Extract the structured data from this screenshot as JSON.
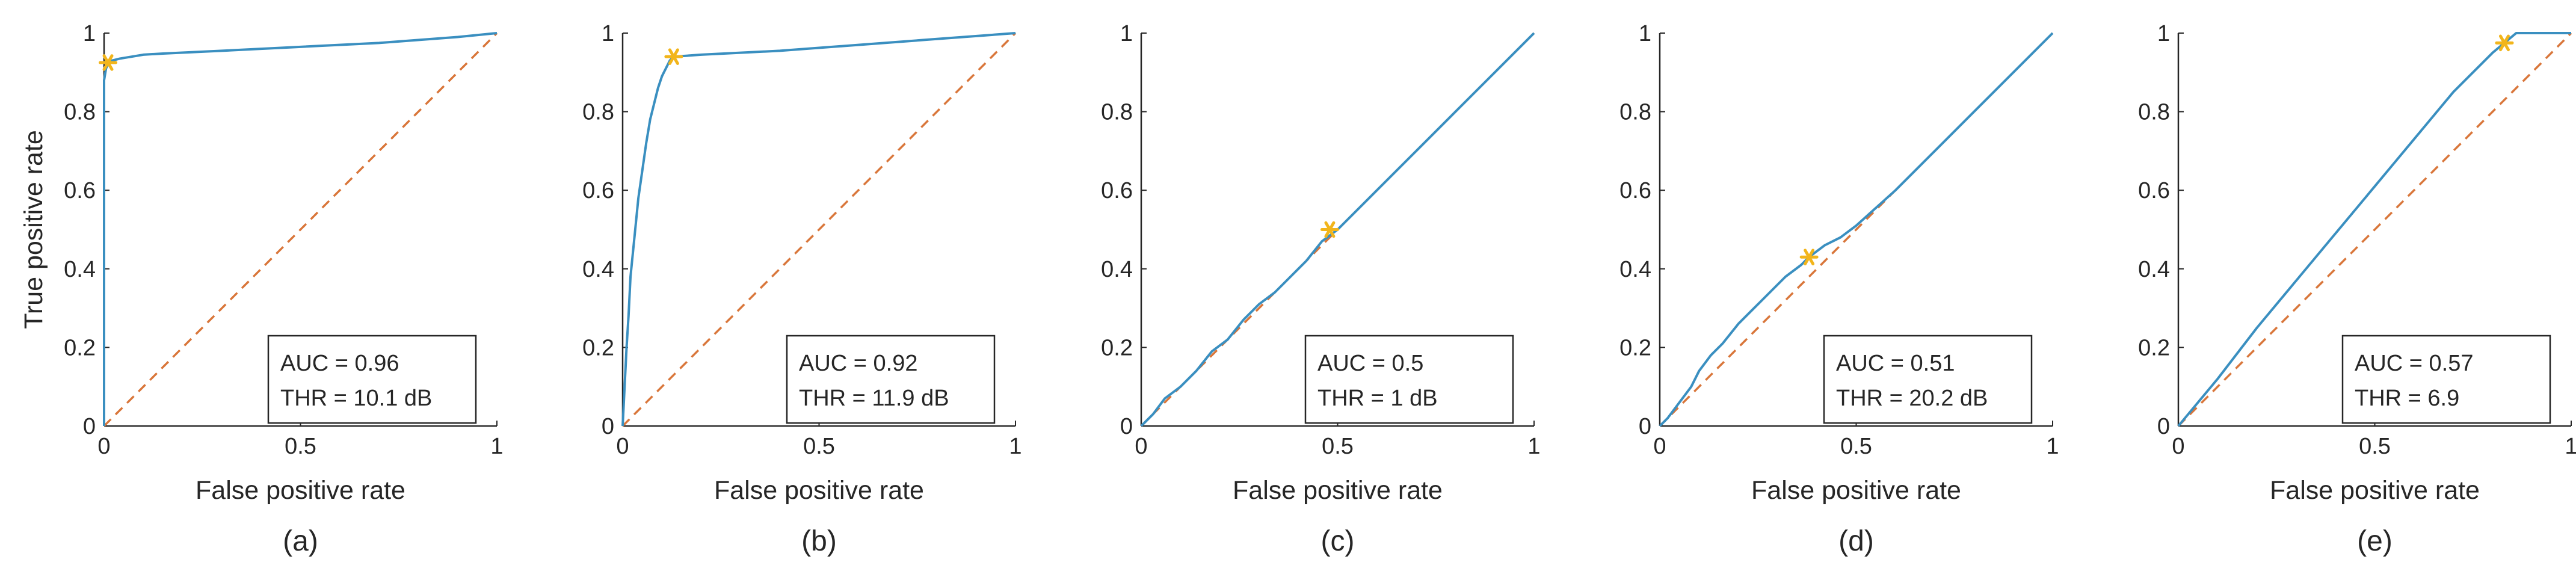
{
  "colors": {
    "roc_curve": "#3a8fc0",
    "chance_line": "#d9763a",
    "optimal_marker": "#f2b51b",
    "axes": "#262626"
  },
  "shared_axes": {
    "xlabel": "False positive rate",
    "ylabel": "True positive rate",
    "xticks": [
      "0",
      "0.5",
      "1"
    ],
    "yticks": [
      "0",
      "0.2",
      "0.4",
      "0.6",
      "0.8",
      "1"
    ]
  },
  "chart_data": [
    {
      "type": "line",
      "caption": "(a)",
      "xlabel": "False positive rate",
      "ylabel": "True positive rate",
      "xlim": [
        0,
        1
      ],
      "ylim": [
        0,
        1
      ],
      "grid": false,
      "annotation": {
        "auc": "AUC = 0.96",
        "thr": "THR = 10.1 dB",
        "placement": "bottom-right"
      },
      "series": [
        {
          "role": "roc",
          "x": [
            0,
            0,
            0.005,
            0.01,
            0.02,
            0.04,
            0.07,
            0.1,
            0.15,
            0.3,
            0.5,
            0.7,
            0.9,
            1.0
          ],
          "y": [
            0,
            0.88,
            0.91,
            0.92,
            0.93,
            0.935,
            0.94,
            0.945,
            0.948,
            0.955,
            0.965,
            0.975,
            0.99,
            1.0
          ]
        },
        {
          "role": "chance",
          "x": [
            0,
            1
          ],
          "y": [
            0,
            1
          ]
        }
      ],
      "optimal_point": {
        "x": 0.01,
        "y": 0.925
      }
    },
    {
      "type": "line",
      "caption": "(b)",
      "xlabel": "False positive rate",
      "ylabel": "",
      "xlim": [
        0,
        1
      ],
      "ylim": [
        0,
        1
      ],
      "grid": false,
      "annotation": {
        "auc": "AUC = 0.92",
        "thr": "THR = 11.9 dB",
        "placement": "bottom-right"
      },
      "series": [
        {
          "role": "roc",
          "x": [
            0,
            0.005,
            0.01,
            0.015,
            0.02,
            0.03,
            0.04,
            0.05,
            0.06,
            0.07,
            0.08,
            0.09,
            0.1,
            0.11,
            0.12,
            0.13,
            0.2,
            0.4,
            0.6,
            0.8,
            1.0
          ],
          "y": [
            0,
            0.1,
            0.2,
            0.28,
            0.38,
            0.48,
            0.58,
            0.65,
            0.72,
            0.78,
            0.82,
            0.86,
            0.89,
            0.91,
            0.93,
            0.94,
            0.945,
            0.955,
            0.97,
            0.985,
            1.0
          ]
        },
        {
          "role": "chance",
          "x": [
            0,
            1
          ],
          "y": [
            0,
            1
          ]
        }
      ],
      "optimal_point": {
        "x": 0.13,
        "y": 0.94
      }
    },
    {
      "type": "line",
      "caption": "(c)",
      "xlabel": "False positive rate",
      "ylabel": "",
      "xlim": [
        0,
        1
      ],
      "ylim": [
        0,
        1
      ],
      "grid": false,
      "annotation": {
        "auc": "AUC = 0.5",
        "thr": "THR = 1 dB",
        "placement": "bottom-right"
      },
      "series": [
        {
          "role": "roc",
          "x": [
            0,
            0.03,
            0.06,
            0.1,
            0.14,
            0.18,
            0.22,
            0.26,
            0.3,
            0.34,
            0.38,
            0.42,
            0.46,
            0.5,
            0.6,
            0.7,
            0.8,
            0.9,
            1.0
          ],
          "y": [
            0,
            0.03,
            0.07,
            0.1,
            0.14,
            0.19,
            0.22,
            0.27,
            0.31,
            0.34,
            0.38,
            0.42,
            0.47,
            0.5,
            0.6,
            0.7,
            0.8,
            0.9,
            1.0
          ]
        },
        {
          "role": "chance",
          "x": [
            0,
            1
          ],
          "y": [
            0,
            1
          ]
        }
      ],
      "optimal_point": {
        "x": 0.48,
        "y": 0.5
      }
    },
    {
      "type": "line",
      "caption": "(d)",
      "xlabel": "False positive rate",
      "ylabel": "",
      "xlim": [
        0,
        1
      ],
      "ylim": [
        0,
        1
      ],
      "grid": false,
      "annotation": {
        "auc": "AUC = 0.51",
        "thr": "THR = 20.2 dB",
        "placement": "bottom-right"
      },
      "series": [
        {
          "role": "roc",
          "x": [
            0,
            0.02,
            0.05,
            0.08,
            0.1,
            0.13,
            0.16,
            0.2,
            0.24,
            0.28,
            0.32,
            0.36,
            0.38,
            0.42,
            0.46,
            0.5,
            0.6,
            0.7,
            0.8,
            0.9,
            1.0
          ],
          "y": [
            0,
            0.02,
            0.06,
            0.1,
            0.14,
            0.18,
            0.21,
            0.26,
            0.3,
            0.34,
            0.38,
            0.41,
            0.43,
            0.46,
            0.48,
            0.51,
            0.6,
            0.7,
            0.8,
            0.9,
            1.0
          ]
        },
        {
          "role": "chance",
          "x": [
            0,
            1
          ],
          "y": [
            0,
            1
          ]
        }
      ],
      "optimal_point": {
        "x": 0.38,
        "y": 0.43
      }
    },
    {
      "type": "line",
      "caption": "(e)",
      "xlabel": "False positive rate",
      "ylabel": "",
      "xlim": [
        0,
        1
      ],
      "ylim": [
        0,
        1
      ],
      "grid": false,
      "annotation": {
        "auc": "AUC = 0.57",
        "thr": "THR = 6.9",
        "placement": "bottom-right"
      },
      "series": [
        {
          "role": "roc",
          "x": [
            0,
            0.1,
            0.2,
            0.3,
            0.4,
            0.45,
            0.5,
            0.55,
            0.6,
            0.65,
            0.7,
            0.75,
            0.8,
            0.83,
            0.86,
            0.9,
            1.0
          ],
          "y": [
            0,
            0.12,
            0.25,
            0.37,
            0.49,
            0.55,
            0.61,
            0.67,
            0.73,
            0.79,
            0.85,
            0.9,
            0.95,
            0.975,
            1.0,
            1.0,
            1.0
          ]
        },
        {
          "role": "chance",
          "x": [
            0,
            1
          ],
          "y": [
            0,
            1
          ]
        }
      ],
      "optimal_point": {
        "x": 0.83,
        "y": 0.975
      }
    }
  ]
}
